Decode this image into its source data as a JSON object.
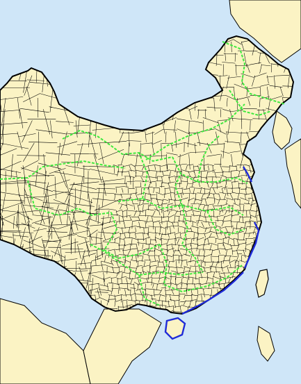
{
  "map": {
    "colors": {
      "sea": "#cfe6f8",
      "land": "#fbf3c4",
      "county_border": "#000000",
      "province_border": "#3fe83f",
      "coast_highlight": "#1f2bd8"
    },
    "icons": {
      "labels": "none"
    }
  }
}
